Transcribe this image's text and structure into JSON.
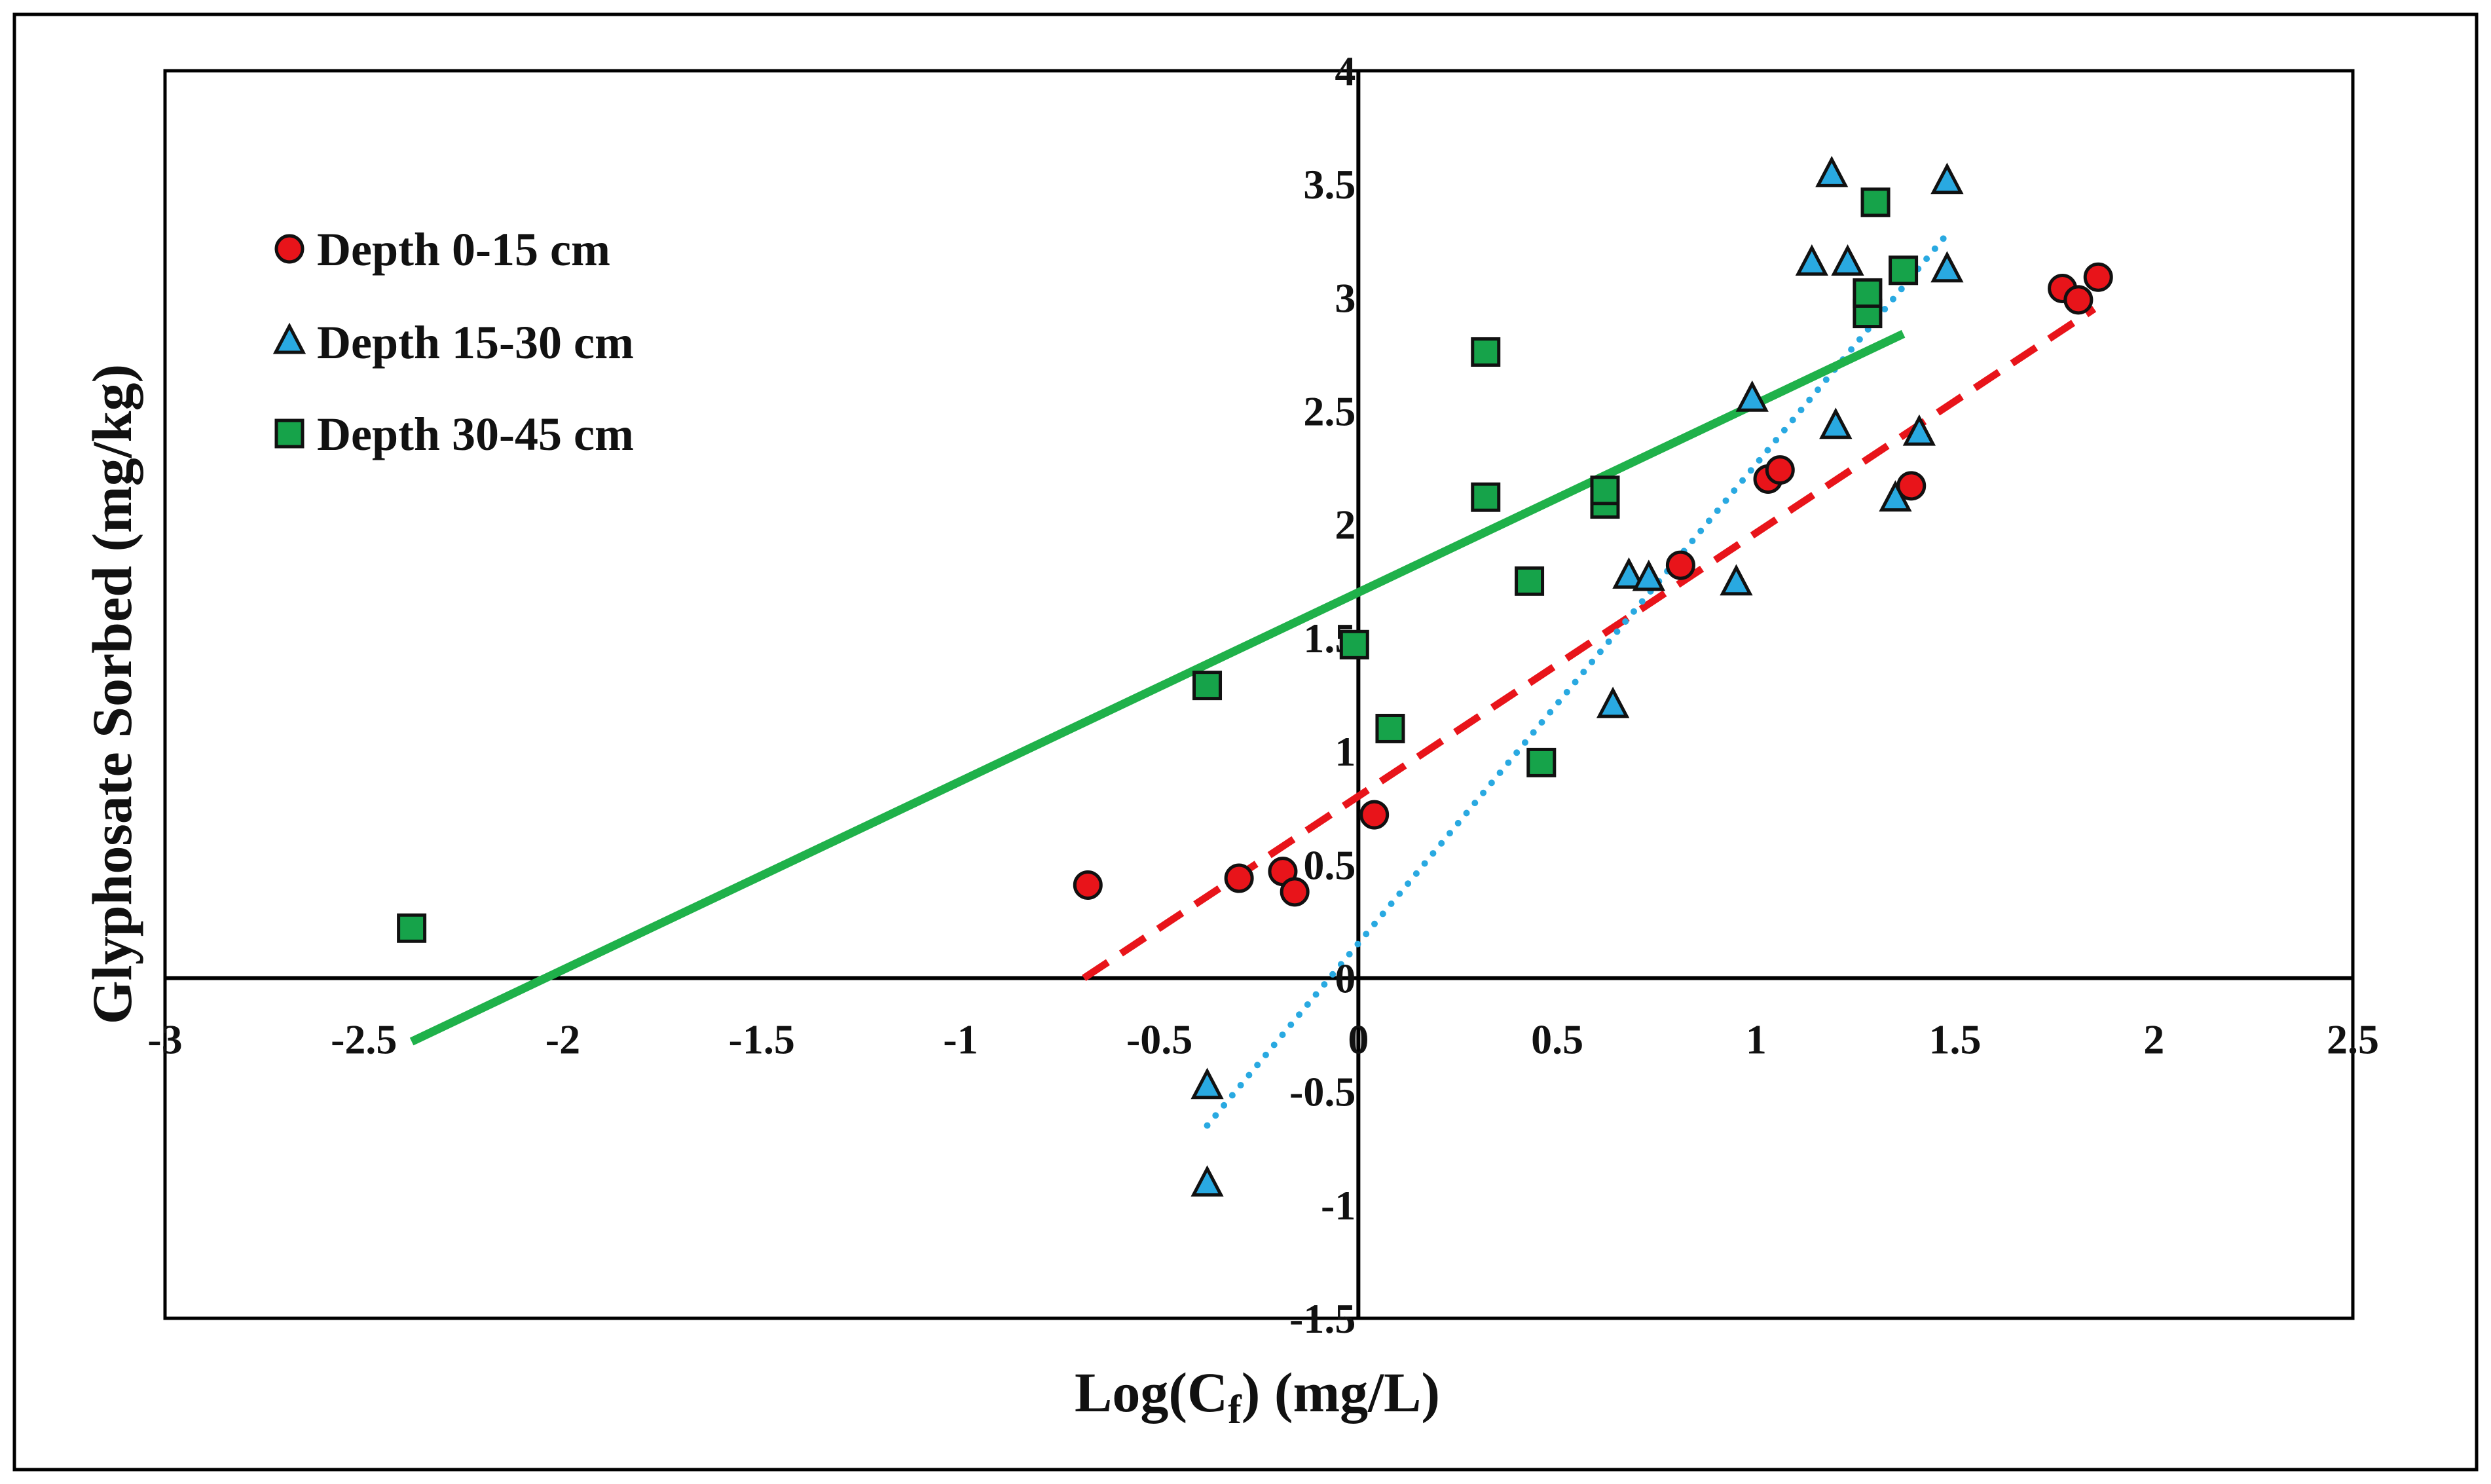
{
  "chart_data": {
    "type": "scatter",
    "title": "",
    "xlabel": "Log(C",
    "xlabel_subscript": "f",
    "xlabel_suffix": ") (mg/L)",
    "ylabel": "Glyphosate Sorbed (mg/kg)",
    "xlim": [
      -3,
      2.5
    ],
    "ylim": [
      -1.5,
      4
    ],
    "x_ticks": [
      -3,
      -2.5,
      -2,
      -1.5,
      -1,
      -0.5,
      0,
      0.5,
      1,
      1.5,
      2,
      2.5
    ],
    "x_tick_labels": [
      "-3",
      "-2.5",
      "-2",
      "-1.5",
      "-1",
      "-0.5",
      "0",
      "0.5",
      "1",
      "1.5",
      "2",
      "2.5"
    ],
    "y_ticks": [
      -1.5,
      -1,
      -0.5,
      0,
      0.5,
      1,
      1.5,
      2,
      2.5,
      3,
      3.5,
      4
    ],
    "y_tick_labels": [
      "-1.5",
      "-1",
      "-0.5",
      "0",
      "0.5",
      "1",
      "1.5",
      "2",
      "2.5",
      "3",
      "3.5",
      "4"
    ],
    "legend_position": "top-left",
    "series": [
      {
        "name": "Depth 0-15 cm",
        "marker": "circle",
        "color": "#e8141a",
        "trend_style": "dashed",
        "trend_color": "#e8141a",
        "trend_x": [
          -0.69,
          1.85
        ],
        "trend_y": [
          0,
          2.95
        ],
        "points": [
          {
            "x": -0.68,
            "y": 0.41
          },
          {
            "x": -0.3,
            "y": 0.44
          },
          {
            "x": -0.19,
            "y": 0.47
          },
          {
            "x": -0.16,
            "y": 0.38
          },
          {
            "x": 0.04,
            "y": 0.72
          },
          {
            "x": 0.81,
            "y": 1.82
          },
          {
            "x": 1.03,
            "y": 2.2
          },
          {
            "x": 1.06,
            "y": 2.24
          },
          {
            "x": 1.39,
            "y": 2.17
          },
          {
            "x": 1.77,
            "y": 3.04
          },
          {
            "x": 1.81,
            "y": 2.99
          },
          {
            "x": 1.86,
            "y": 3.09
          }
        ]
      },
      {
        "name": "Depth 15-30 cm",
        "marker": "triangle",
        "color": "#29a9e1",
        "trend_style": "dotted",
        "trend_color": "#29a9e1",
        "trend_x": [
          -0.38,
          1.48
        ],
        "trend_y": [
          -0.65,
          3.28
        ],
        "points": [
          {
            "x": -0.38,
            "y": -0.48
          },
          {
            "x": -0.38,
            "y": -0.91
          },
          {
            "x": 0.64,
            "y": 1.2
          },
          {
            "x": 0.68,
            "y": 1.77
          },
          {
            "x": 0.73,
            "y": 1.76
          },
          {
            "x": 0.95,
            "y": 1.74
          },
          {
            "x": 0.99,
            "y": 2.55
          },
          {
            "x": 1.14,
            "y": 3.15
          },
          {
            "x": 1.19,
            "y": 3.54
          },
          {
            "x": 1.2,
            "y": 2.43
          },
          {
            "x": 1.23,
            "y": 3.15
          },
          {
            "x": 1.35,
            "y": 2.11
          },
          {
            "x": 1.41,
            "y": 2.4
          },
          {
            "x": 1.48,
            "y": 3.51
          },
          {
            "x": 1.48,
            "y": 3.12
          }
        ]
      },
      {
        "name": "Depth 30-45 cm",
        "marker": "square",
        "color": "#16a34a",
        "trend_style": "solid",
        "trend_color": "#1fb14a",
        "trend_x": [
          -2.38,
          1.37
        ],
        "trend_y": [
          -0.28,
          2.84
        ],
        "points": [
          {
            "x": -2.38,
            "y": 0.22
          },
          {
            "x": -0.38,
            "y": 1.29
          },
          {
            "x": -0.01,
            "y": 1.47
          },
          {
            "x": 0.08,
            "y": 1.1
          },
          {
            "x": 0.32,
            "y": 2.12
          },
          {
            "x": 0.32,
            "y": 2.76
          },
          {
            "x": 0.43,
            "y": 1.75
          },
          {
            "x": 0.46,
            "y": 0.95
          },
          {
            "x": 0.62,
            "y": 2.09
          },
          {
            "x": 0.62,
            "y": 2.15
          },
          {
            "x": 1.28,
            "y": 2.93
          },
          {
            "x": 1.28,
            "y": 3.02
          },
          {
            "x": 1.3,
            "y": 3.42
          },
          {
            "x": 1.37,
            "y": 3.12
          }
        ]
      }
    ]
  }
}
